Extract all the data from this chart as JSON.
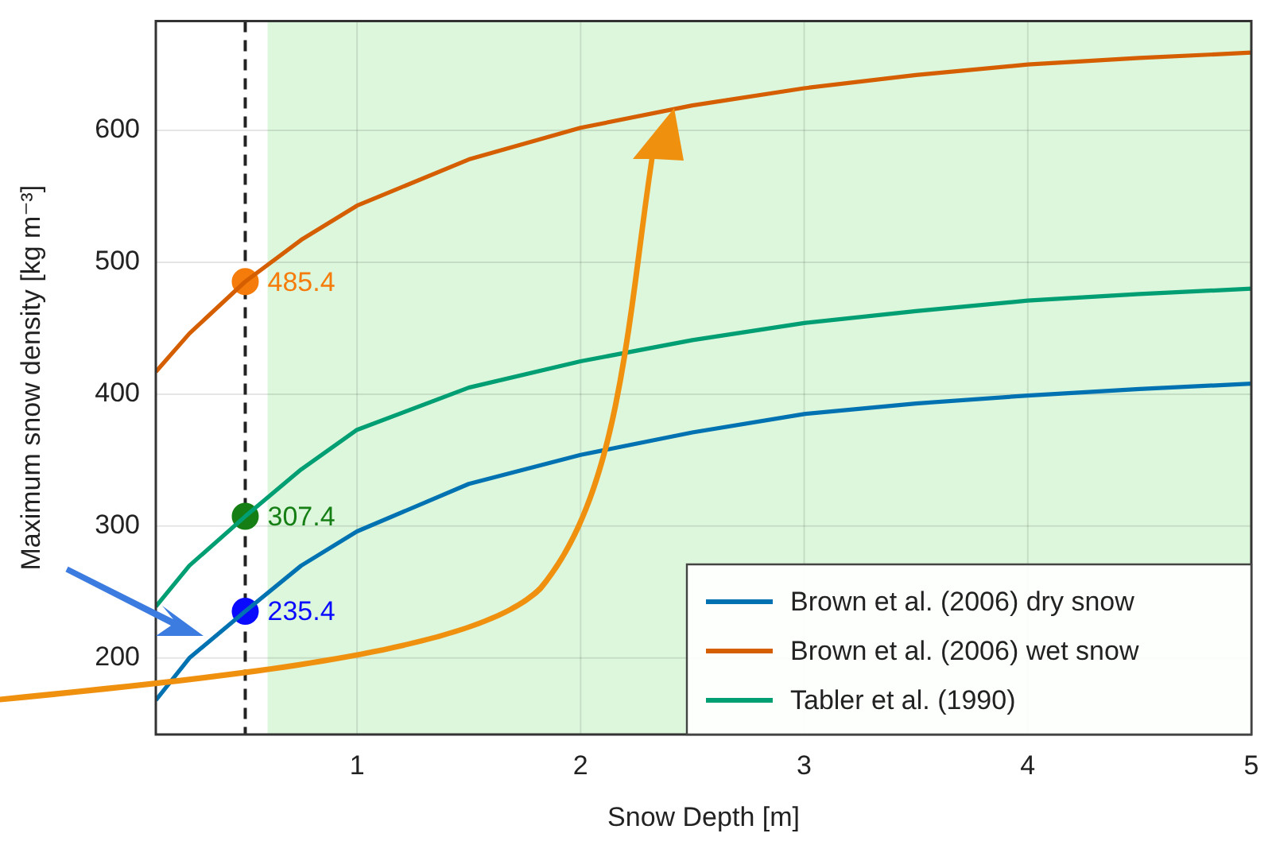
{
  "chart_data": {
    "type": "line",
    "xlabel": "Snow Depth [m]",
    "ylabel": "Maximum snow density [kg m⁻³]",
    "xlim": [
      0.1,
      5
    ],
    "xticks": [
      1,
      2,
      3,
      4,
      5
    ],
    "ylim": [
      142,
      683
    ],
    "yticks": [
      200,
      300,
      400,
      500,
      600
    ],
    "grid": true,
    "legend": "bottom right",
    "marker": "none",
    "line_style": "solid",
    "series": [
      {
        "name": "Brown et al. (2006) dry snow",
        "color": "#0072b2",
        "x": [
          0.1,
          0.25,
          0.5,
          0.75,
          1,
          1.5,
          2,
          2.5,
          3,
          3.5,
          4,
          4.5,
          5
        ],
        "values": [
          168,
          200,
          235.4,
          270,
          296,
          332,
          354,
          371,
          385,
          393,
          399,
          404,
          408
        ]
      },
      {
        "name": "Brown et al. (2006) wet snow",
        "color": "#d55e00",
        "x": [
          0.1,
          0.25,
          0.5,
          0.75,
          1,
          1.5,
          2,
          2.5,
          3,
          3.5,
          4,
          4.5,
          5
        ],
        "values": [
          417,
          446,
          485.4,
          517,
          543,
          578,
          602,
          619,
          632,
          642,
          650,
          655,
          659
        ]
      },
      {
        "name": "Tabler et al. (1990)",
        "color": "#009e73",
        "x": [
          0.1,
          0.25,
          0.5,
          0.75,
          1,
          1.5,
          2,
          2.5,
          3,
          3.5,
          4,
          4.5,
          5
        ],
        "values": [
          239,
          270,
          307.4,
          343,
          373,
          405,
          425,
          441,
          454,
          463,
          471,
          476,
          480
        ]
      },
      {
        "type": "scatter",
        "marker": "circle",
        "color": "#f57c0a",
        "x": [
          0.5
        ],
        "values": [
          485.4
        ],
        "value_labels": [
          "485.4"
        ]
      },
      {
        "type": "scatter",
        "marker": "circle",
        "color": "#157f15",
        "x": [
          0.5
        ],
        "values": [
          307.4
        ],
        "value_labels": [
          "307.4"
        ]
      },
      {
        "type": "scatter",
        "marker": "circle",
        "color": "#0a0aff",
        "x": [
          0.5
        ],
        "values": [
          235.4
        ],
        "value_labels": [
          "235.4"
        ]
      }
    ],
    "ref_lines": [
      {
        "axis": "x",
        "value": 0.5,
        "color": "#222222",
        "line_style": "dashed"
      }
    ],
    "bands": [
      {
        "axis": "x",
        "from": 0.6,
        "to": 5,
        "color": "#dcf7dc"
      }
    ]
  }
}
